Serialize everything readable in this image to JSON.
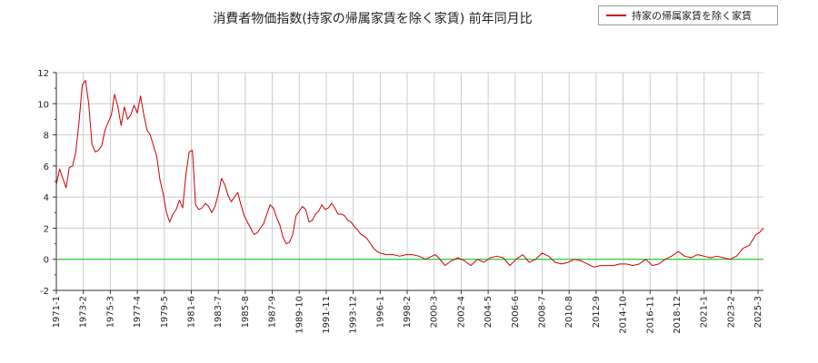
{
  "chart_data": {
    "type": "line",
    "title": "消費者物価指数(持家の帰属家賃を除く家賃) 前年同月比",
    "legend": {
      "position": "top-right",
      "entries": [
        "持家の帰属家賃を除く家賃"
      ]
    },
    "ylim": [
      -2,
      12
    ],
    "y_ticks": [
      -2,
      0,
      2,
      4,
      6,
      8,
      10,
      12
    ],
    "x_range": [
      "1971-1",
      "2025-8"
    ],
    "x_tick_labels": [
      "1971-1",
      "1973-2",
      "1975-3",
      "1977-4",
      "1979-5",
      "1981-6",
      "1983-7",
      "1985-8",
      "1987-9",
      "1989-10",
      "1991-11",
      "1993-12",
      "1996-1",
      "1998-2",
      "2000-3",
      "2002-4",
      "2004-5",
      "2006-6",
      "2008-7",
      "2010-8",
      "2012-9",
      "2014-10",
      "2016-11",
      "2018-12",
      "2021-1",
      "2023-2",
      "2025-3"
    ],
    "grid": true,
    "reference_line": {
      "y": 0,
      "color": "#00cc00"
    },
    "series": [
      {
        "name": "持家の帰属家賃を除く家賃",
        "color": "#cc0000",
        "x": [
          "1971-1",
          "1971-4",
          "1971-7",
          "1971-10",
          "1972-1",
          "1972-4",
          "1972-7",
          "1972-10",
          "1973-1",
          "1973-4",
          "1973-7",
          "1973-10",
          "1974-1",
          "1974-4",
          "1974-7",
          "1974-10",
          "1975-1",
          "1975-4",
          "1975-7",
          "1975-10",
          "1976-1",
          "1976-4",
          "1976-7",
          "1976-10",
          "1977-1",
          "1977-4",
          "1977-7",
          "1977-10",
          "1978-1",
          "1978-4",
          "1978-7",
          "1978-10",
          "1979-1",
          "1979-4",
          "1979-7",
          "1979-10",
          "1980-1",
          "1980-4",
          "1980-7",
          "1980-10",
          "1981-1",
          "1981-4",
          "1981-7",
          "1981-10",
          "1982-1",
          "1982-4",
          "1982-7",
          "1982-10",
          "1983-1",
          "1983-4",
          "1983-7",
          "1983-10",
          "1984-1",
          "1984-4",
          "1984-7",
          "1984-10",
          "1985-1",
          "1985-4",
          "1985-7",
          "1985-10",
          "1986-1",
          "1986-4",
          "1986-7",
          "1986-10",
          "1987-1",
          "1987-4",
          "1987-7",
          "1987-10",
          "1988-1",
          "1988-4",
          "1988-7",
          "1988-10",
          "1989-1",
          "1989-4",
          "1989-7",
          "1989-10",
          "1990-1",
          "1990-4",
          "1990-7",
          "1990-10",
          "1991-1",
          "1991-4",
          "1991-7",
          "1991-10",
          "1992-1",
          "1992-4",
          "1992-7",
          "1992-10",
          "1993-1",
          "1993-4",
          "1993-7",
          "1993-10",
          "1994-1",
          "1994-4",
          "1994-7",
          "1994-10",
          "1995-1",
          "1995-4",
          "1995-7",
          "1995-10",
          "1996-1",
          "1996-7",
          "1997-1",
          "1997-7",
          "1998-1",
          "1998-7",
          "1999-1",
          "1999-7",
          "2000-1",
          "2000-4",
          "2000-7",
          "2001-1",
          "2001-7",
          "2002-1",
          "2002-7",
          "2003-1",
          "2003-7",
          "2004-1",
          "2004-7",
          "2005-1",
          "2005-7",
          "2006-1",
          "2006-7",
          "2007-1",
          "2007-7",
          "2008-1",
          "2008-7",
          "2009-1",
          "2009-7",
          "2010-1",
          "2010-7",
          "2011-1",
          "2011-7",
          "2012-1",
          "2012-7",
          "2013-1",
          "2013-7",
          "2014-1",
          "2014-7",
          "2015-1",
          "2015-7",
          "2016-1",
          "2016-7",
          "2017-1",
          "2017-7",
          "2018-1",
          "2018-7",
          "2019-1",
          "2019-7",
          "2020-1",
          "2020-7",
          "2021-1",
          "2021-7",
          "2022-1",
          "2022-7",
          "2023-1",
          "2023-7",
          "2024-1",
          "2024-7",
          "2025-1",
          "2025-4",
          "2025-8"
        ],
        "values": [
          4.8,
          5.8,
          5.2,
          4.6,
          5.9,
          6.0,
          6.9,
          8.8,
          11.2,
          11.5,
          10.0,
          7.4,
          6.9,
          7.0,
          7.3,
          8.3,
          8.8,
          9.3,
          10.6,
          9.8,
          8.6,
          9.8,
          9.0,
          9.3,
          9.9,
          9.4,
          10.5,
          9.3,
          8.3,
          8.0,
          7.3,
          6.6,
          5.1,
          4.2,
          3.0,
          2.4,
          2.9,
          3.2,
          3.8,
          3.3,
          5.4,
          6.9,
          7.0,
          3.5,
          3.2,
          3.3,
          3.6,
          3.4,
          3.0,
          3.4,
          4.2,
          5.2,
          4.8,
          4.1,
          3.7,
          4.0,
          4.3,
          3.5,
          2.8,
          2.4,
          2.0,
          1.6,
          1.7,
          2.0,
          2.3,
          2.9,
          3.5,
          3.3,
          2.7,
          2.2,
          1.4,
          1.0,
          1.1,
          1.6,
          2.8,
          3.1,
          3.4,
          3.2,
          2.4,
          2.5,
          2.9,
          3.1,
          3.5,
          3.2,
          3.3,
          3.6,
          3.3,
          2.9,
          2.9,
          2.8,
          2.5,
          2.4,
          2.1,
          1.9,
          1.6,
          1.5,
          1.3,
          1.0,
          0.7,
          0.5,
          0.4,
          0.3,
          0.3,
          0.2,
          0.3,
          0.3,
          0.2,
          0.0,
          0.2,
          0.3,
          0.1,
          -0.4,
          -0.1,
          0.1,
          -0.1,
          -0.4,
          0.0,
          -0.2,
          0.1,
          0.2,
          0.1,
          -0.4,
          0.0,
          0.3,
          -0.2,
          0.0,
          0.4,
          0.2,
          -0.2,
          -0.3,
          -0.2,
          0.0,
          -0.1,
          -0.3,
          -0.5,
          -0.4,
          -0.4,
          -0.4,
          -0.3,
          -0.3,
          -0.4,
          -0.3,
          0.0,
          -0.4,
          -0.3,
          0.0,
          0.2,
          0.5,
          0.2,
          0.1,
          0.3,
          0.2,
          0.1,
          0.2,
          0.1,
          0.0,
          0.2,
          0.7,
          0.9,
          1.6,
          1.7,
          2.0
        ]
      }
    ]
  }
}
